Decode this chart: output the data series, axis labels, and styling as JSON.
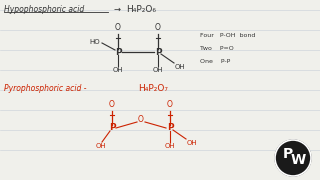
{
  "bg_color": "#f0f0eb",
  "line_color_top": "#333333",
  "line_color_bottom": "#cc2200",
  "title1": "Hypophosphoric acid",
  "arrow1": "→",
  "formula1": "H₄P₂O₆",
  "title2": "Pyrophosphoric acid -",
  "formula2": "H₄P₂O₇",
  "notes": [
    "Four   P-OH  bond",
    "Two    P=O",
    "One    P-P"
  ],
  "ruled_lines": [
    30,
    50,
    70,
    90,
    110,
    130,
    150,
    170
  ]
}
